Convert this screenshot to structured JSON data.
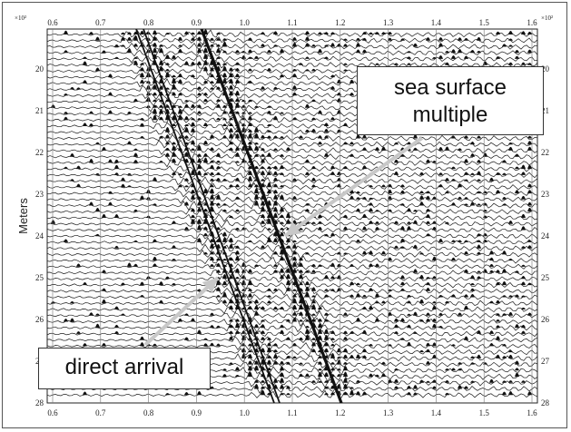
{
  "figure": {
    "y_axis_label": "Meters",
    "exponent_label_left": "×10²",
    "exponent_label_right": "×10²",
    "x_ticks_top": [
      "0.6",
      "0.7",
      "0.8",
      "0.9",
      "1.0",
      "1.1",
      "1.2",
      "1.3",
      "1.4",
      "1.5",
      "1.6"
    ],
    "x_ticks_bottom": [
      "0.6",
      "0.7",
      "0.8",
      "0.9",
      "1.0",
      "1.1",
      "1.2",
      "1.3",
      "1.4",
      "1.5",
      "1.6"
    ],
    "y_ticks_left": [
      "20",
      "21",
      "22",
      "23",
      "24",
      "25",
      "26",
      "27",
      "28"
    ],
    "y_ticks_right": [
      "20",
      "21",
      "22",
      "23",
      "24",
      "25",
      "26",
      "27",
      "28"
    ],
    "annotations": {
      "sea_surface_line1": "sea surface",
      "sea_surface_line2": "multiple",
      "direct_arrival": "direct arrival"
    },
    "colors": {
      "ink": "#111111",
      "trace": "#1a1a1a",
      "arrow": "#c8c8c8",
      "grid": "#777777"
    }
  }
}
